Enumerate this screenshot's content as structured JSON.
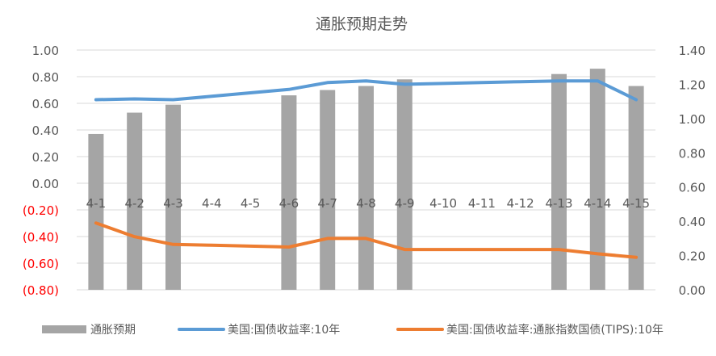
{
  "chart_data": {
    "type": "bar",
    "title": "通胀预期走势",
    "categories": [
      "4-1",
      "4-2",
      "4-3",
      "4-4",
      "4-5",
      "4-6",
      "4-7",
      "4-8",
      "4-9",
      "4-10",
      "4-11",
      "4-12",
      "4-13",
      "4-14",
      "4-15"
    ],
    "left_axis": {
      "ylim": [
        -0.8,
        1.0
      ],
      "ticks": [
        1.0,
        0.8,
        0.6,
        0.4,
        0.2,
        0.0,
        -0.2,
        -0.4,
        -0.6,
        -0.8
      ],
      "tick_labels": [
        "1.00",
        "0.80",
        "0.60",
        "0.40",
        "0.20",
        "0.00",
        "(0.20)",
        "(0.40)",
        "(0.60)",
        "(0.80)"
      ],
      "negative_label_color": "#ff0000"
    },
    "right_axis": {
      "ylim": [
        0.0,
        1.4
      ],
      "ticks": [
        1.4,
        1.2,
        1.0,
        0.8,
        0.6,
        0.4,
        0.2,
        0.0
      ],
      "tick_labels": [
        "1.40",
        "1.20",
        "1.00",
        "0.80",
        "0.60",
        "0.40",
        "0.20",
        "0.00"
      ]
    },
    "series": [
      {
        "name": "通胀预期",
        "type": "bar",
        "axis": "left",
        "color": "#a5a5a5",
        "bar_base": -0.8,
        "values": [
          0.37,
          0.53,
          0.59,
          null,
          null,
          0.66,
          0.7,
          0.73,
          0.78,
          null,
          null,
          null,
          0.82,
          0.86,
          0.73
        ]
      },
      {
        "name": "美国:国债收益率:10年",
        "type": "line",
        "axis": "right",
        "color": "#5b9bd5",
        "values": [
          1.11,
          1.115,
          1.11,
          1.13,
          1.15,
          1.17,
          1.21,
          1.22,
          1.2,
          1.205,
          1.21,
          1.215,
          1.22,
          1.22,
          1.11
        ]
      },
      {
        "name": "美国:国债收益率:通胀指数国债(TIPS):10年",
        "type": "line",
        "axis": "right",
        "color": "#ed7d31",
        "values": [
          0.39,
          0.31,
          0.265,
          0.26,
          0.255,
          0.25,
          0.3,
          0.3,
          0.235,
          0.235,
          0.235,
          0.235,
          0.235,
          0.21,
          0.19
        ]
      }
    ],
    "grid": true,
    "legend_position": "bottom"
  }
}
